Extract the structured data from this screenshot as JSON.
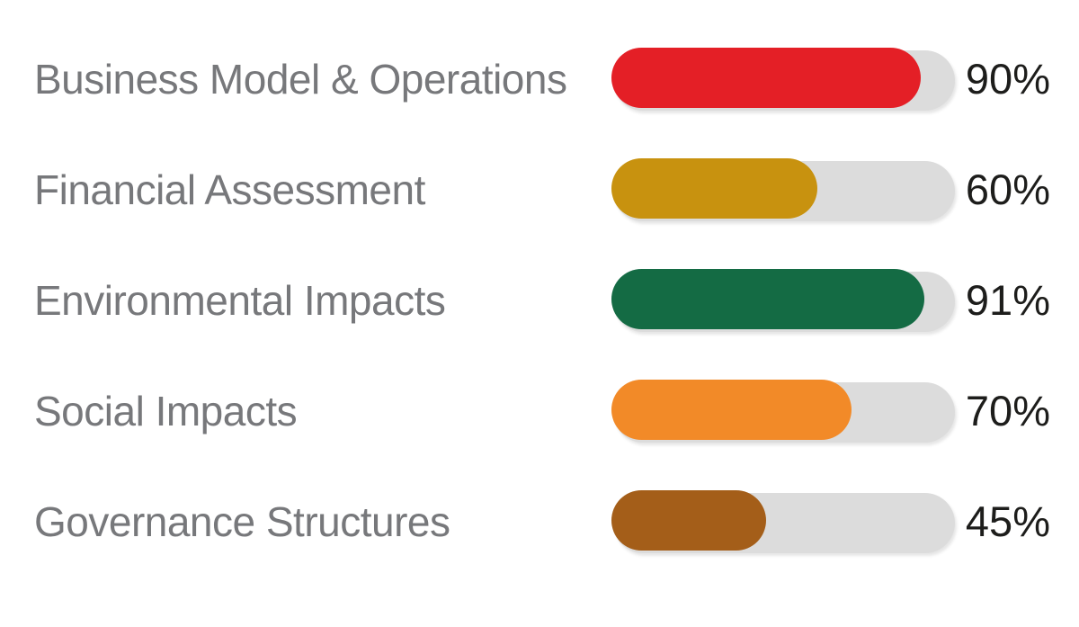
{
  "chart_data": {
    "type": "bar",
    "orientation": "horizontal",
    "title": "",
    "xlabel": "",
    "ylabel": "",
    "xlim": [
      0,
      100
    ],
    "grid": false,
    "legend": false,
    "categories": [
      "Business Model & Operations",
      "Financial Assessment",
      "Environmental Impacts",
      "Social Impacts",
      "Governance Structures"
    ],
    "values": [
      90,
      60,
      91,
      70,
      45
    ],
    "value_labels": [
      "90%",
      "60%",
      "91%",
      "70%",
      "45%"
    ],
    "bar_colors": [
      "#e41f26",
      "#c8920f",
      "#146b44",
      "#f28a28",
      "#a45e19"
    ],
    "track_color": "#dcdcdc",
    "label_color": "#77787b",
    "value_color": "#1d1d1b",
    "background_color": "#ffffff"
  }
}
